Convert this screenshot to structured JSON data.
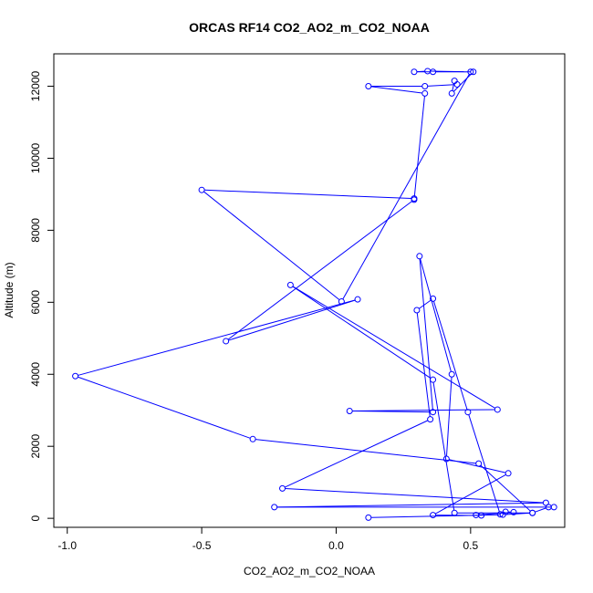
{
  "chart_data": {
    "type": "line",
    "title": "ORCAS RF14 CO2_AO2_m_CO2_NOAA",
    "xlabel": "CO2_AO2_m_CO2_NOAA",
    "ylabel": "Altitude (m)",
    "xlim": [
      -1.05,
      0.85
    ],
    "ylim": [
      -250,
      12900
    ],
    "xticks": [
      -1.0,
      -0.5,
      0.0,
      0.5
    ],
    "xtick_labels": [
      "-1.0",
      "-0.5",
      "0.0",
      "0.5"
    ],
    "yticks": [
      0,
      2000,
      4000,
      6000,
      8000,
      10000,
      12000
    ],
    "ytick_labels": [
      "0",
      "2000",
      "4000",
      "6000",
      "8000",
      "10000",
      "12000"
    ],
    "grid": false,
    "color": "#0000ff",
    "markers": "open-circle",
    "series": [
      {
        "x": [
          0.12,
          0.62,
          0.73,
          0.79,
          0.81,
          -0.23,
          0.78,
          -0.2,
          0.35,
          0.3,
          0.36,
          0.49,
          0.61,
          0.63,
          0.66,
          0.52,
          0.54,
          0.36,
          0.64,
          0.41,
          0.43,
          0.31,
          0.36,
          0.05,
          0.6,
          -0.17,
          0.36,
          0.44,
          0.73,
          0.53,
          -0.31,
          -0.97,
          0.08,
          -0.41,
          0.29,
          0.33,
          0.12,
          0.33,
          0.45,
          0.44,
          0.43,
          0.51,
          0.36,
          0.29,
          0.34,
          0.5,
          0.02,
          -0.5,
          0.29
        ],
        "y": [
          20,
          100,
          150,
          310,
          310,
          310,
          430,
          830,
          2750,
          5780,
          6100,
          2950,
          110,
          180,
          170,
          90,
          80,
          90,
          1250,
          1650,
          4000,
          7280,
          2950,
          2980,
          3020,
          6480,
          3850,
          150,
          150,
          1520,
          2200,
          3950,
          6080,
          4920,
          8850,
          11800,
          12000,
          12000,
          12050,
          12150,
          11800,
          12400,
          12400,
          12400,
          12420,
          12400,
          6020,
          9120,
          8880
        ]
      }
    ]
  }
}
